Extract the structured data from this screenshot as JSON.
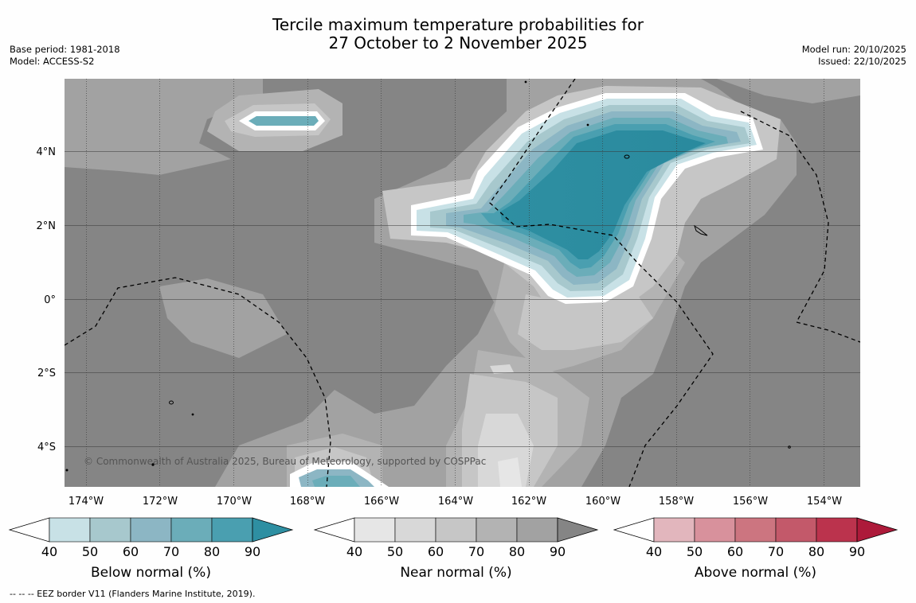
{
  "title": {
    "line1": "Tercile maximum temperature probabilities for",
    "line2": "27 October to 2 November 2025"
  },
  "info_left": {
    "base_period": "Base period: 1981-2018",
    "model": "Model: ACCESS-S2"
  },
  "info_right": {
    "model_run": "Model run: 20/10/2025",
    "issued": "Issued: 22/10/2025"
  },
  "map": {
    "lon_labels": [
      "174°W",
      "172°W",
      "170°W",
      "168°W",
      "166°W",
      "164°W",
      "162°W",
      "160°W",
      "158°W",
      "156°W",
      "154°W"
    ],
    "lat_labels": [
      "4°N",
      "2°N",
      "0°",
      "2°S",
      "4°S"
    ],
    "copyright": "© Commonwealth of Australia 2025, Bureau of Meteorology, supported by COSPPac",
    "colors": {
      "near_90": "#858585",
      "near_80": "#a2a2a2",
      "near_70": "#b3b3b3",
      "near_60": "#c6c6c6",
      "near_50": "#d8d8d8",
      "near_40": "#e6e6e6",
      "below_40": "#c8e1e6",
      "below_50": "#a7c8cd",
      "below_60": "#8cb6c4",
      "below_70": "#6badb9",
      "below_80": "#4a9fb0",
      "below_90": "#2e8fa2"
    }
  },
  "colorbars": [
    {
      "label": "Below normal (%)",
      "ticks": [
        "40",
        "50",
        "60",
        "70",
        "80",
        "90"
      ],
      "colors": [
        "#c8e1e6",
        "#a7c8cd",
        "#8cb6c4",
        "#6badb9",
        "#4a9fb0",
        "#2e8fa2"
      ]
    },
    {
      "label": "Near normal (%)",
      "ticks": [
        "40",
        "50",
        "60",
        "70",
        "80",
        "90"
      ],
      "colors": [
        "#e6e6e6",
        "#d8d8d8",
        "#c6c6c6",
        "#b3b3b3",
        "#a2a2a2",
        "#858585"
      ]
    },
    {
      "label": "Above normal (%)",
      "ticks": [
        "40",
        "50",
        "60",
        "70",
        "80",
        "90"
      ],
      "colors": [
        "#e2b6bd",
        "#d8919c",
        "#cc7580",
        "#c3596a",
        "#bb334d",
        "#ad1a3a"
      ]
    }
  ],
  "footnote": "-- -- -- EEZ border V11 (Flanders Marine Institute, 2019)."
}
